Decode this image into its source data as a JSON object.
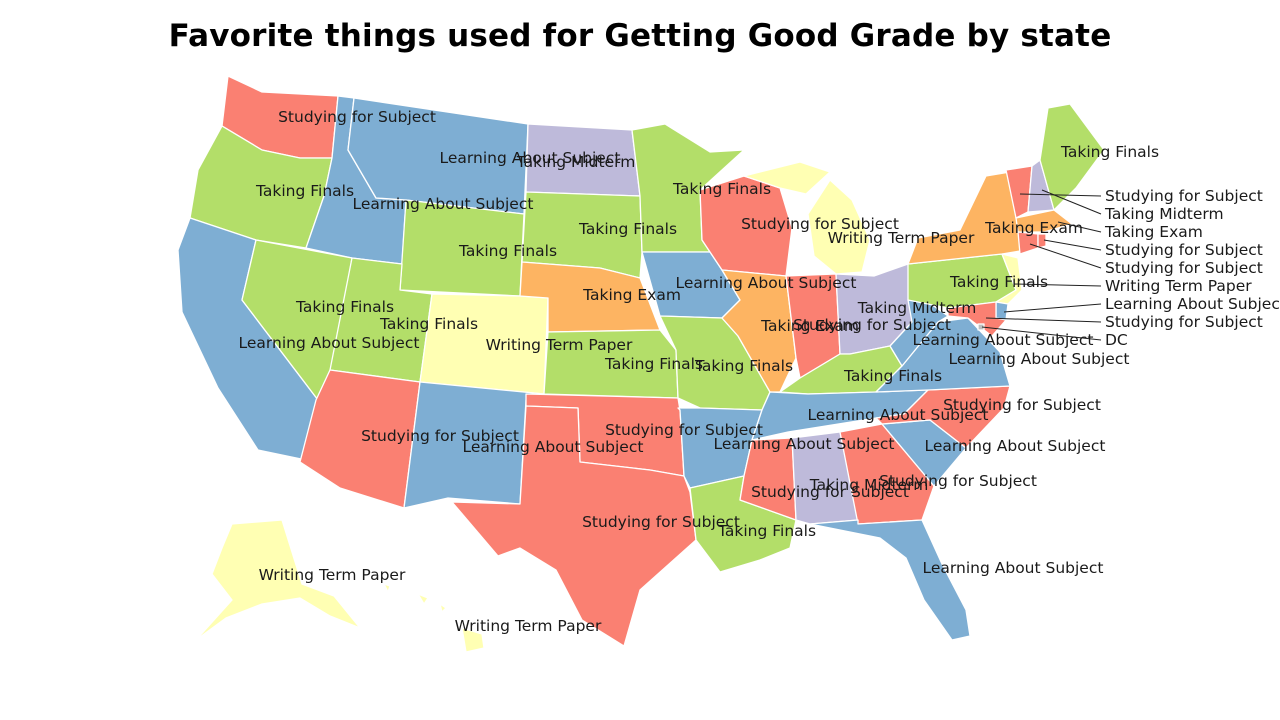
{
  "title": "Favorite things used for Getting Good Grade by state",
  "colors": {
    "Studying for Subject": "#fa8072",
    "Learning About Subject": "#7eaed3",
    "Taking Finals": "#b3de69",
    "Taking Midterm": "#bebada",
    "Taking Exam": "#fdb462",
    "Writing Term Paper": "#ffffb3"
  },
  "states": [
    {
      "state": "WA",
      "value": "Studying for Subject"
    },
    {
      "state": "OR",
      "value": "Taking Finals"
    },
    {
      "state": "CA",
      "value": "Learning About Subject"
    },
    {
      "state": "ID",
      "value": "Learning About Subject"
    },
    {
      "state": "NV",
      "value": "Taking Finals"
    },
    {
      "state": "MT",
      "value": "Learning About Subject"
    },
    {
      "state": "WY",
      "value": "Taking Finals"
    },
    {
      "state": "UT",
      "value": "Taking Finals"
    },
    {
      "state": "AZ",
      "value": "Studying for Subject"
    },
    {
      "state": "CO",
      "value": "Writing Term Paper"
    },
    {
      "state": "NM",
      "value": "Learning About Subject"
    },
    {
      "state": "ND",
      "value": "Taking Midterm"
    },
    {
      "state": "SD",
      "value": "Taking Finals"
    },
    {
      "state": "NE",
      "value": "Taking Exam"
    },
    {
      "state": "KS",
      "value": "Taking Finals"
    },
    {
      "state": "OK",
      "value": "Studying for Subject"
    },
    {
      "state": "TX",
      "value": "Studying for Subject"
    },
    {
      "state": "MN",
      "value": "Taking Finals"
    },
    {
      "state": "IA",
      "value": "Learning About Subject"
    },
    {
      "state": "MO",
      "value": "Taking Finals"
    },
    {
      "state": "AR",
      "value": "Learning About Subject"
    },
    {
      "state": "LA",
      "value": "Taking Finals"
    },
    {
      "state": "WI",
      "value": "Studying for Subject"
    },
    {
      "state": "MI",
      "value": "Writing Term Paper"
    },
    {
      "state": "IL",
      "value": "Taking Exam"
    },
    {
      "state": "IN",
      "value": "Studying for Subject"
    },
    {
      "state": "OH",
      "value": "Taking Midterm"
    },
    {
      "state": "KY",
      "value": "Taking Finals"
    },
    {
      "state": "TN",
      "value": "Learning About Subject"
    },
    {
      "state": "MS",
      "value": "Studying for Subject"
    },
    {
      "state": "AL",
      "value": "Taking Midterm"
    },
    {
      "state": "GA",
      "value": "Studying for Subject"
    },
    {
      "state": "FL",
      "value": "Learning About Subject"
    },
    {
      "state": "SC",
      "value": "Learning About Subject"
    },
    {
      "state": "NC",
      "value": "Studying for Subject"
    },
    {
      "state": "VA",
      "value": "Learning About Subject"
    },
    {
      "state": "WV",
      "value": "Learning About Subject"
    },
    {
      "state": "PA",
      "value": "Taking Finals"
    },
    {
      "state": "NY",
      "value": "Taking Exam"
    },
    {
      "state": "ME",
      "value": "Taking Finals"
    },
    {
      "state": "VT",
      "value": "Studying for Subject"
    },
    {
      "state": "NH",
      "value": "Taking Midterm"
    },
    {
      "state": "MA",
      "value": "Taking Exam"
    },
    {
      "state": "RI",
      "value": "Studying for Subject"
    },
    {
      "state": "CT",
      "value": "Studying for Subject"
    },
    {
      "state": "NJ",
      "value": "Writing Term Paper"
    },
    {
      "state": "DE",
      "value": "Learning About Subject"
    },
    {
      "state": "MD",
      "value": "Studying for Subject"
    },
    {
      "state": "DC",
      "value": "DC"
    },
    {
      "state": "AK",
      "value": "Writing Term Paper"
    },
    {
      "state": "HI",
      "value": "Writing Term Paper"
    }
  ]
}
